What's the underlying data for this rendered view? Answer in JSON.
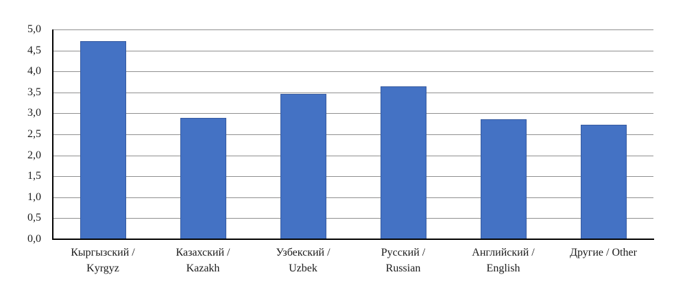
{
  "chart_data": {
    "type": "bar",
    "title": "",
    "xlabel": "",
    "ylabel": "",
    "categories": [
      "Кыргызский / Kyrgyz",
      "Казахский / Kazakh",
      "Узбекский / Uzbek",
      "Русский / Russian",
      "Английский / English",
      "Другие / Other"
    ],
    "category_lines": [
      [
        "Кыргызский /",
        "Kyrgyz"
      ],
      [
        "Казахский /",
        "Kazakh"
      ],
      [
        "Узбекский /",
        "Uzbek"
      ],
      [
        "Русский /",
        "Russian"
      ],
      [
        "Английский /",
        "English"
      ],
      [
        "Другие / Other"
      ]
    ],
    "values": [
      4.73,
      2.9,
      3.46,
      3.65,
      2.86,
      2.73
    ],
    "ylim": [
      0,
      5
    ],
    "ytick_step": 0.5,
    "ytick_labels": [
      "5,0",
      "4,5",
      "4,0",
      "3,5",
      "3,0",
      "2,5",
      "2,0",
      "1,5",
      "1,0",
      "0,5",
      "0,0"
    ],
    "decimal_separator": ",",
    "grid": "horizontal",
    "legend": "none",
    "colors": {
      "bar_fill": "#4472C4",
      "bar_border": "#35599F",
      "gridline": "#8E8E8E",
      "axis": "#000000",
      "text": "#1A1A1A",
      "background": "#FFFFFF"
    }
  }
}
